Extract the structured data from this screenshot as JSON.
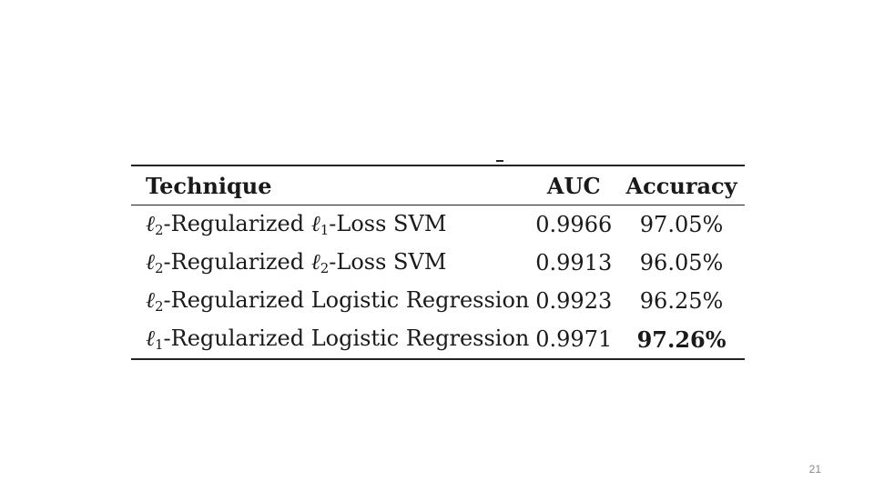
{
  "table": {
    "headers": {
      "technique": "Technique",
      "auc": "AUC",
      "accuracy": "Accuracy"
    },
    "rows": [
      {
        "reg_symbol": "ℓ",
        "reg_sub": "2",
        "reg_text": "-Regularized ",
        "loss_symbol": "ℓ",
        "loss_sub": "1",
        "loss_text": "-Loss SVM",
        "method_text": "",
        "auc": "0.9966",
        "accuracy": "97.05%",
        "best": false
      },
      {
        "reg_symbol": "ℓ",
        "reg_sub": "2",
        "reg_text": "-Regularized ",
        "loss_symbol": "ℓ",
        "loss_sub": "2",
        "loss_text": "-Loss SVM",
        "method_text": "",
        "auc": "0.9913",
        "accuracy": "96.05%",
        "best": false
      },
      {
        "reg_symbol": "ℓ",
        "reg_sub": "2",
        "reg_text": "-Regularized Logistic Regression",
        "loss_symbol": "",
        "loss_sub": "",
        "loss_text": "",
        "method_text": "",
        "auc": "0.9923",
        "accuracy": "96.25%",
        "best": false
      },
      {
        "reg_symbol": "ℓ",
        "reg_sub": "1",
        "reg_text": "-Regularized Logistic Regression",
        "loss_symbol": "",
        "loss_sub": "",
        "loss_text": "",
        "method_text": "",
        "auc": "0.9971",
        "accuracy": "97.26%",
        "best": true
      }
    ]
  },
  "footer": {
    "page_number": "21"
  },
  "colors": {
    "text": "#1a1a1a",
    "rule": "#222222",
    "page_number": "#888888",
    "background": "#ffffff"
  }
}
